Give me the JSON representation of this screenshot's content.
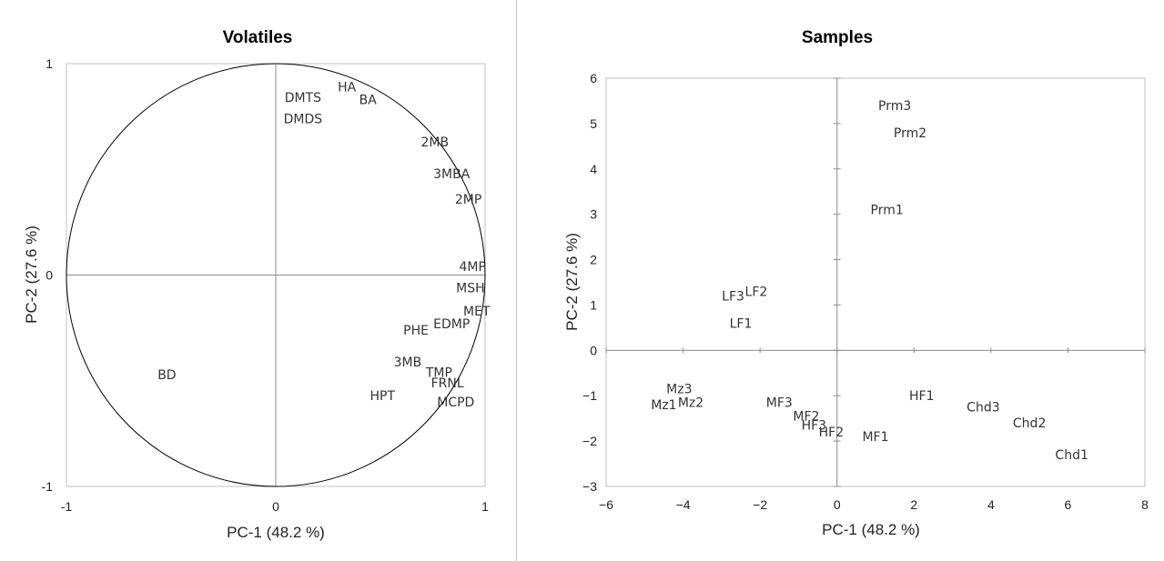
{
  "chart_data": [
    {
      "type": "scatter",
      "title": "Volatiles",
      "xlabel": "PC-1 (48.2 %)",
      "ylabel": "PC-2 (27.6 %)",
      "xlim": [
        -1,
        1
      ],
      "ylim": [
        -1,
        1
      ],
      "xticks": [
        "-1",
        "0",
        "1"
      ],
      "yticks": [
        "-1",
        "0",
        "1"
      ],
      "grid": false,
      "unit_circle": true,
      "points": [
        {
          "label": "HA",
          "x": 0.34,
          "y": 0.89
        },
        {
          "label": "BA",
          "x": 0.44,
          "y": 0.83
        },
        {
          "label": "DMTS",
          "x": 0.13,
          "y": 0.84
        },
        {
          "label": "DMDS",
          "x": 0.13,
          "y": 0.74
        },
        {
          "label": "2MB",
          "x": 0.76,
          "y": 0.63
        },
        {
          "label": "3MBA",
          "x": 0.84,
          "y": 0.48
        },
        {
          "label": "2MP",
          "x": 0.92,
          "y": 0.36
        },
        {
          "label": "4MP",
          "x": 0.94,
          "y": 0.04
        },
        {
          "label": "MSH",
          "x": 0.93,
          "y": -0.06
        },
        {
          "label": "MET",
          "x": 0.96,
          "y": -0.17
        },
        {
          "label": "EDMP",
          "x": 0.84,
          "y": -0.23
        },
        {
          "label": "PHE",
          "x": 0.67,
          "y": -0.26
        },
        {
          "label": "3MB",
          "x": 0.63,
          "y": -0.41
        },
        {
          "label": "TMP",
          "x": 0.78,
          "y": -0.46
        },
        {
          "label": "FRNL",
          "x": 0.82,
          "y": -0.51
        },
        {
          "label": "HPT",
          "x": 0.51,
          "y": -0.57
        },
        {
          "label": "MCPD",
          "x": 0.86,
          "y": -0.6
        },
        {
          "label": "BD",
          "x": -0.52,
          "y": -0.47
        }
      ]
    },
    {
      "type": "scatter",
      "title": "Samples",
      "xlabel": "PC-1 (48.2 %)",
      "ylabel": "PC-2 (27.6 %)",
      "xlim": [
        -6,
        8
      ],
      "ylim": [
        -3,
        6
      ],
      "xticks": [
        "−6",
        "−4",
        "−2",
        "0",
        "2",
        "4",
        "6",
        "8"
      ],
      "yticks": [
        "−3",
        "−2",
        "−1",
        "0",
        "1",
        "2",
        "3",
        "4",
        "5",
        "6"
      ],
      "grid": false,
      "points": [
        {
          "label": "Prm3",
          "x": 1.5,
          "y": 5.4
        },
        {
          "label": "Prm2",
          "x": 1.9,
          "y": 4.8
        },
        {
          "label": "Prm1",
          "x": 1.3,
          "y": 3.1
        },
        {
          "label": "LF3",
          "x": -2.7,
          "y": 1.2
        },
        {
          "label": "LF2",
          "x": -2.1,
          "y": 1.3
        },
        {
          "label": "LF1",
          "x": -2.5,
          "y": 0.6
        },
        {
          "label": "Mz3",
          "x": -4.1,
          "y": -0.85
        },
        {
          "label": "Mz1",
          "x": -4.5,
          "y": -1.2
        },
        {
          "label": "Mz2",
          "x": -3.8,
          "y": -1.15
        },
        {
          "label": "MF3",
          "x": -1.5,
          "y": -1.15
        },
        {
          "label": "MF2",
          "x": -0.8,
          "y": -1.45
        },
        {
          "label": "HF3",
          "x": -0.6,
          "y": -1.65
        },
        {
          "label": "HF2",
          "x": -0.15,
          "y": -1.8
        },
        {
          "label": "MF1",
          "x": 1.0,
          "y": -1.9
        },
        {
          "label": "HF1",
          "x": 2.2,
          "y": -1.0
        },
        {
          "label": "Chd3",
          "x": 3.8,
          "y": -1.25
        },
        {
          "label": "Chd2",
          "x": 5.0,
          "y": -1.6
        },
        {
          "label": "Chd1",
          "x": 6.1,
          "y": -2.3
        }
      ]
    }
  ]
}
